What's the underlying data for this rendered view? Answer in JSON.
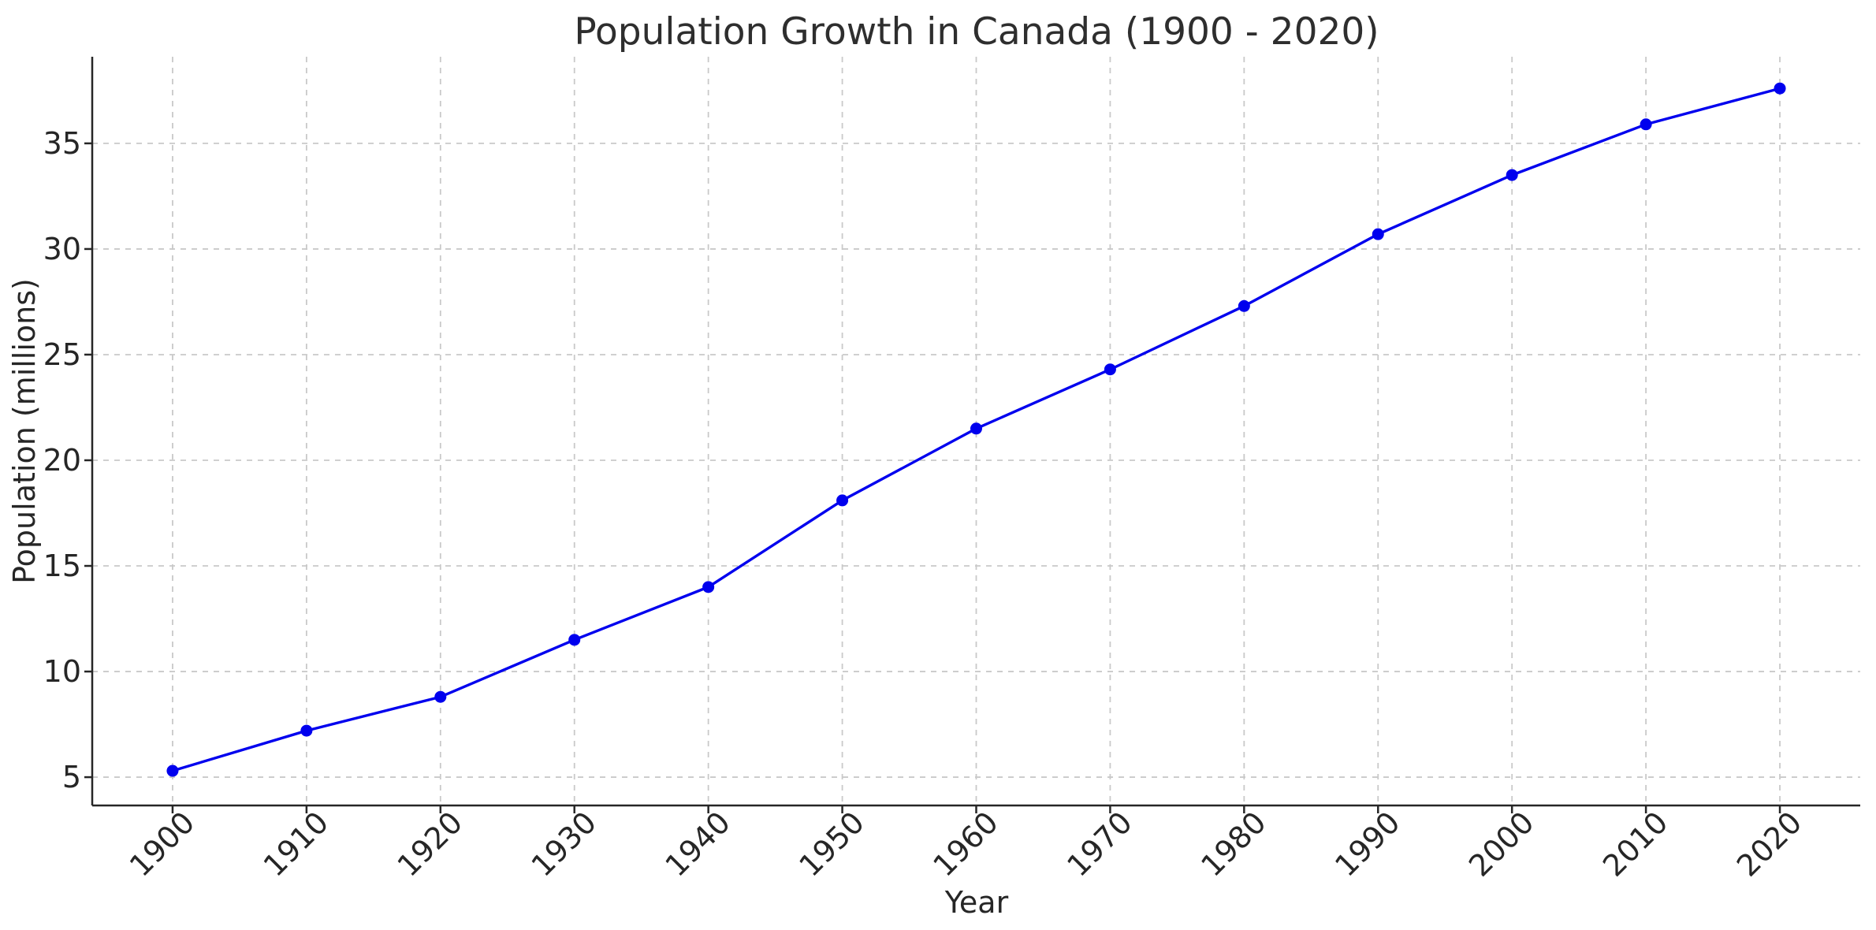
{
  "figure": {
    "background": "#ffffff"
  },
  "chart_data": {
    "type": "line",
    "title": "Population Growth in Canada (1900 - 2020)",
    "xlabel": "Year",
    "ylabel": "Population (millions)",
    "categories": [
      1900,
      1910,
      1920,
      1930,
      1940,
      1950,
      1960,
      1970,
      1980,
      1990,
      2000,
      2010,
      2020
    ],
    "values": [
      5.3,
      7.2,
      8.8,
      11.5,
      14.0,
      18.1,
      21.5,
      24.3,
      27.3,
      30.7,
      33.5,
      35.9,
      37.6
    ],
    "series_name": "Population (millions)",
    "yticks": [
      5,
      10,
      15,
      20,
      25,
      30,
      35
    ],
    "xlim": [
      1894,
      2026
    ],
    "ylim": [
      3.66,
      39.1
    ],
    "x_tick_rotation": 45,
    "grid": true,
    "grid_style": "dashed",
    "legend": "none",
    "marker": "circle",
    "colors": {
      "line": "#0000ee",
      "marker": "#0000ee",
      "grid": "#c9c9c9",
      "spine": "#262626",
      "text": "#262626",
      "title": "#2e2e2e",
      "background": "#ffffff"
    }
  }
}
